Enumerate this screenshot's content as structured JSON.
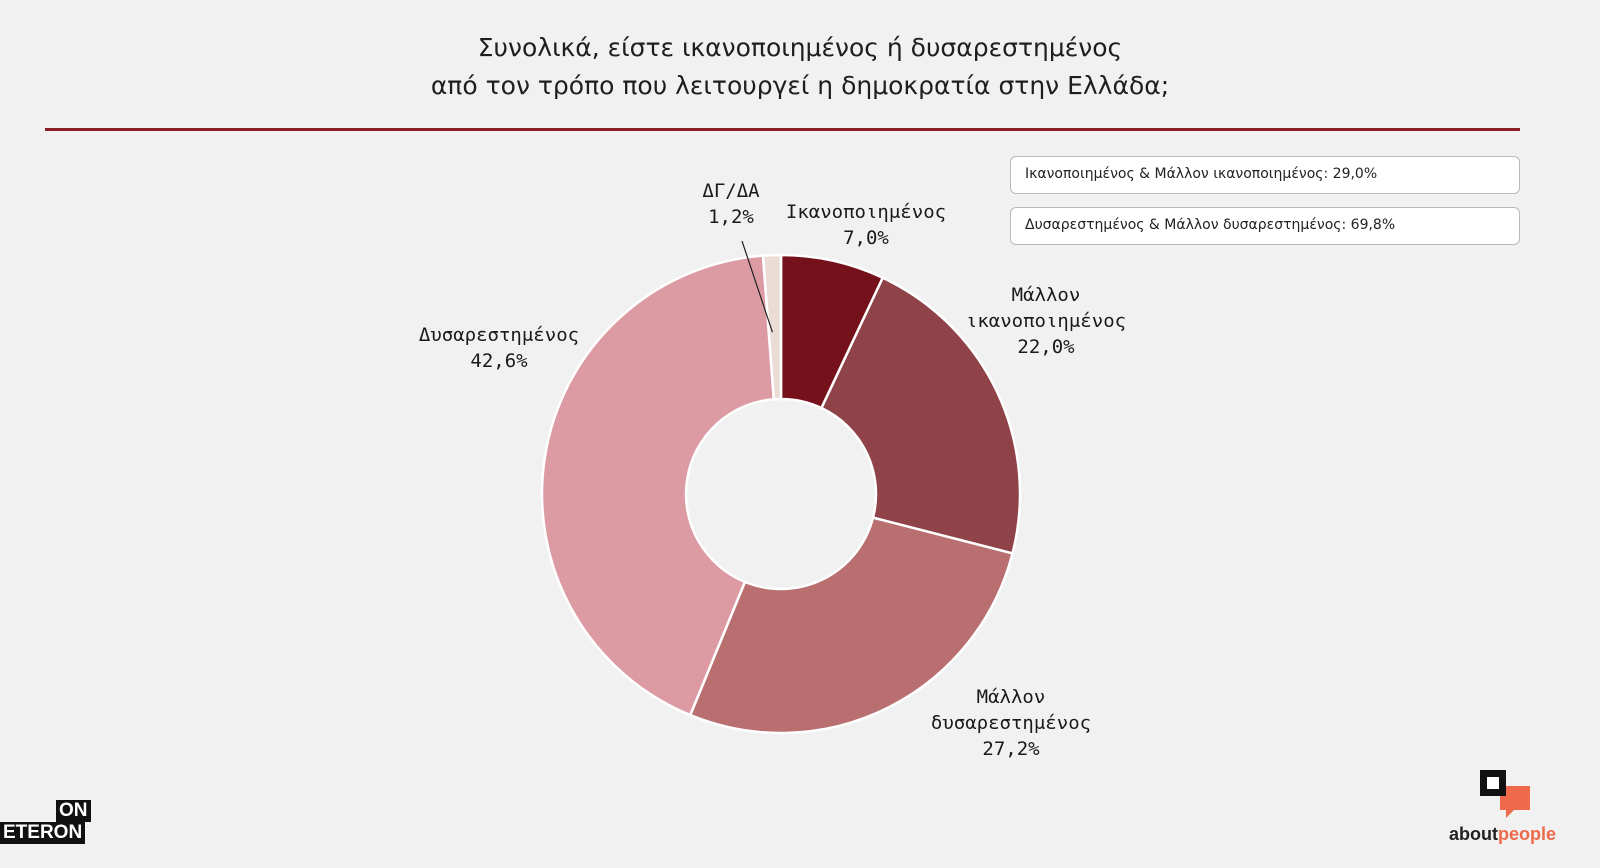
{
  "title": {
    "line1": "Συνολικά, είστε ικανοποιημένος ή δυσαρεστημένος",
    "line2": "από τον τρόπο που λειτουργεί η δημοκρατία στην Ελλάδα;"
  },
  "summary": {
    "box1": "Ικανοποιημένος & Μάλλον ικανοποιημένος: 29,0%",
    "box2": "Δυσαρεστημένος & Μάλλον δυσαρεστημένος: 69,8%"
  },
  "colors": {
    "rule": "#8a1f2a",
    "slices": [
      "#75111a",
      "#8f4349",
      "#b96f70",
      "#dc9aa2",
      "#ecdcd6"
    ]
  },
  "chart_data": {
    "type": "pie",
    "donut": true,
    "categories": [
      "Ικανοποιημένος",
      "Μάλλον ικανοποιημένος",
      "Μάλλον δυσαρεστημένος",
      "Δυσαρεστημένος",
      "ΔΓ/ΔΑ"
    ],
    "values": [
      7.0,
      22.0,
      27.2,
      42.6,
      1.2
    ],
    "value_labels": [
      "7,0%",
      "22,0%",
      "27,2%",
      "42,6%",
      "1,2%"
    ],
    "label_lines": [
      [
        "Ικανοποιημένος"
      ],
      [
        "Μάλλον",
        "ικανοποιημένος"
      ],
      [
        "Μάλλον",
        "δυσαρεστημένος"
      ],
      [
        "Δυσαρεστημένος"
      ],
      [
        "ΔΓ/ΔΑ"
      ]
    ]
  },
  "logos": {
    "left_top": "ON",
    "left_bottom": "ETERON",
    "right_about": "about",
    "right_people": "people"
  }
}
